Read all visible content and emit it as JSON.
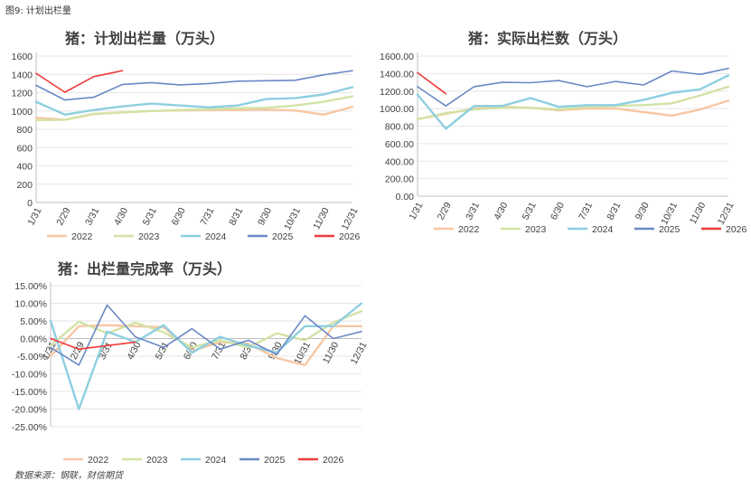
{
  "figure_label": "图9: 计划出栏量",
  "source": "数据来源：钢联，财信期货",
  "colors": {
    "2022": "#f7c7a3",
    "2023": "#d2e3a6",
    "2024": "#8ecfe0",
    "2025": "#6b89c6",
    "2026": "#ee3b3b"
  },
  "chart_data": [
    {
      "type": "line",
      "title": "猪：计划出栏量（万头）",
      "x": [
        "1/31",
        "2/29",
        "3/31",
        "4/30",
        "5/31",
        "6/30",
        "7/31",
        "8/31",
        "9/30",
        "10/31",
        "11/30",
        "12/31"
      ],
      "ylim": [
        0,
        1600
      ],
      "yticks": [
        "0",
        "200",
        "400",
        "600",
        "800",
        "1000",
        "1200",
        "1400",
        "1600"
      ],
      "legend_position": "bottom",
      "series": [
        {
          "name": "2022",
          "values": [
            925,
            905,
            965,
            985,
            1000,
            1005,
            1010,
            1010,
            1015,
            1005,
            960,
            1045
          ]
        },
        {
          "name": "2023",
          "values": [
            900,
            905,
            970,
            985,
            1000,
            1010,
            1020,
            1030,
            1035,
            1060,
            1100,
            1160
          ]
        },
        {
          "name": "2024",
          "values": [
            1100,
            960,
            1010,
            1050,
            1080,
            1060,
            1040,
            1060,
            1130,
            1140,
            1180,
            1260
          ]
        },
        {
          "name": "2025",
          "values": [
            1280,
            1120,
            1150,
            1290,
            1310,
            1285,
            1300,
            1325,
            1330,
            1335,
            1395,
            1440
          ]
        },
        {
          "name": "2026",
          "values": [
            1410,
            1205,
            1375,
            1440,
            null,
            null,
            null,
            null,
            null,
            null,
            null,
            null
          ]
        }
      ]
    },
    {
      "type": "line",
      "title": "猪：实际出栏数（万头）",
      "x": [
        "1/31",
        "2/29",
        "3/31",
        "4/30",
        "5/31",
        "6/30",
        "7/31",
        "8/31",
        "9/30",
        "10/31",
        "11/30",
        "12/31"
      ],
      "ylim": [
        0,
        1600
      ],
      "yticks": [
        "0.00",
        "200.00",
        "400.00",
        "600.00",
        "800.00",
        "1000.00",
        "1200.00",
        "1400.00",
        "1600.00"
      ],
      "legend_position": "bottom",
      "series": [
        {
          "name": "2022",
          "values": [
            880,
            940,
            1000,
            1020,
            1010,
            980,
            1000,
            1000,
            960,
            920,
            990,
            1090
          ]
        },
        {
          "name": "2023",
          "values": [
            880,
            950,
            990,
            1010,
            1010,
            990,
            1020,
            1030,
            1040,
            1060,
            1150,
            1250
          ]
        },
        {
          "name": "2024",
          "values": [
            1160,
            770,
            1030,
            1030,
            1120,
            1020,
            1040,
            1040,
            1100,
            1180,
            1220,
            1380
          ]
        },
        {
          "name": "2025",
          "values": [
            1250,
            1030,
            1250,
            1300,
            1295,
            1320,
            1250,
            1310,
            1270,
            1430,
            1390,
            1460
          ]
        },
        {
          "name": "2026",
          "values": [
            1410,
            1170,
            null,
            null,
            null,
            null,
            null,
            null,
            null,
            null,
            null,
            null
          ]
        }
      ]
    },
    {
      "type": "line",
      "title": "猪：出栏量完成率（万头）",
      "x": [
        "1/31",
        "2/29",
        "3/31",
        "4/30",
        "5/31",
        "6/30",
        "7/31",
        "8/31",
        "9/30",
        "10/31",
        "11/30",
        "12/31"
      ],
      "ylim": [
        -25,
        15
      ],
      "yticks": [
        "-25.00%",
        "-20.00%",
        "-15.00%",
        "-10.00%",
        "-5.00%",
        "0.00%",
        "5.00%",
        "10.00%",
        "15.00%"
      ],
      "legend_position": "bottom",
      "series": [
        {
          "name": "2022",
          "values": [
            -5.0,
            3.5,
            3.8,
            3.5,
            3.2,
            -3.5,
            -1.0,
            -1.5,
            -5.5,
            -7.5,
            3.5,
            3.5
          ]
        },
        {
          "name": "2023",
          "values": [
            -2.0,
            4.8,
            1.5,
            4.5,
            1.8,
            -2.5,
            -0.5,
            -2.5,
            1.5,
            -0.5,
            4.5,
            7.8
          ]
        },
        {
          "name": "2024",
          "values": [
            5.0,
            -20.0,
            2.0,
            -1.0,
            3.8,
            -4.0,
            0.5,
            -2.0,
            -4.0,
            3.5,
            3.5,
            10.0
          ]
        },
        {
          "name": "2025",
          "values": [
            -2.5,
            -7.5,
            9.5,
            0.5,
            -2.5,
            2.8,
            -3.0,
            -0.5,
            -4.5,
            6.5,
            0.0,
            2.0
          ]
        },
        {
          "name": "2026",
          "values": [
            0.0,
            -3.0,
            -2.0,
            -1.0,
            null,
            null,
            null,
            null,
            null,
            null,
            null,
            null
          ]
        }
      ]
    }
  ]
}
